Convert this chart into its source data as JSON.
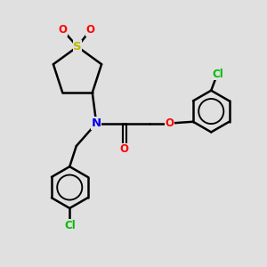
{
  "bg_color": "#e0e0e0",
  "bond_color": "#000000",
  "S_color": "#b8b800",
  "O_color": "#ff0000",
  "N_color": "#0000ee",
  "Cl_color": "#00bb00",
  "line_width": 1.8,
  "font_size": 8.5,
  "figsize": [
    3.0,
    3.0
  ],
  "dpi": 100,
  "xlim": [
    0,
    10
  ],
  "ylim": [
    0,
    10
  ]
}
